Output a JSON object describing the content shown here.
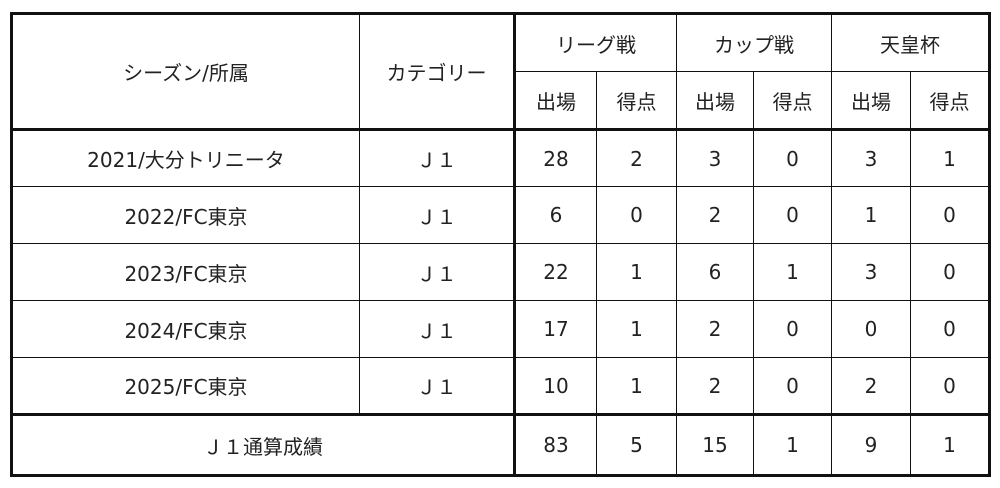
{
  "headers": {
    "season": "シーズン/所属",
    "category": "カテゴリー",
    "groups": [
      "リーグ戦",
      "カップ戦",
      "天皇杯"
    ],
    "sub": [
      "出場",
      "得点"
    ]
  },
  "rows": [
    {
      "season": "2021/大分トリニータ",
      "category": "Ｊ１",
      "values": [
        "28",
        "2",
        "3",
        "0",
        "3",
        "1"
      ]
    },
    {
      "season": "2022/FC東京",
      "category": "Ｊ１",
      "values": [
        "6",
        "0",
        "2",
        "0",
        "1",
        "0"
      ]
    },
    {
      "season": "2023/FC東京",
      "category": "Ｊ１",
      "values": [
        "22",
        "1",
        "6",
        "1",
        "3",
        "0"
      ]
    },
    {
      "season": "2024/FC東京",
      "category": "Ｊ１",
      "values": [
        "17",
        "1",
        "2",
        "0",
        "0",
        "0"
      ]
    },
    {
      "season": "2025/FC東京",
      "category": "Ｊ１",
      "values": [
        "10",
        "1",
        "2",
        "0",
        "2",
        "0"
      ]
    }
  ],
  "total": {
    "label": "Ｊ１通算成績",
    "values": [
      "83",
      "5",
      "15",
      "1",
      "9",
      "1"
    ]
  }
}
